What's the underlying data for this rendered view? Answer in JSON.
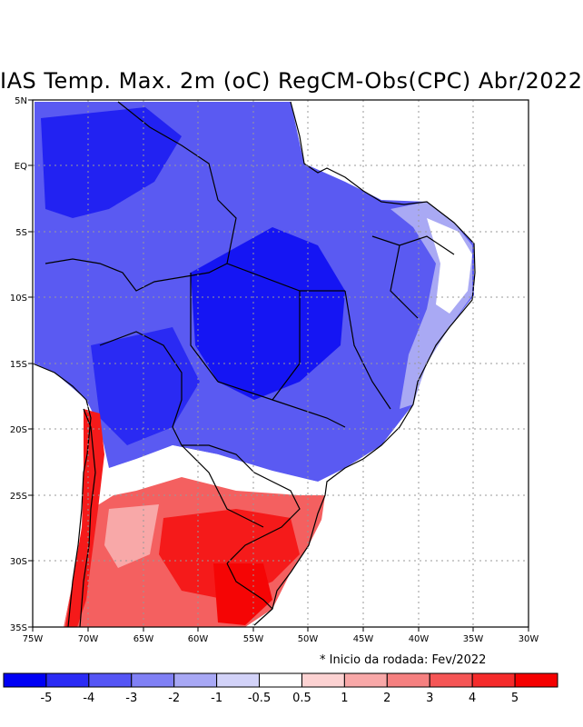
{
  "title": "IAS Temp. Max. 2m (oC) RegCM-Obs(CPC) Abr/2022",
  "note": "* Inicio da rodada: Fev/2022",
  "lat_ticks": [
    "5N",
    "EQ",
    "5S",
    "10S",
    "15S",
    "20S",
    "25S",
    "30S",
    "35S"
  ],
  "lon_ticks": [
    "75W",
    "70W",
    "65W",
    "60W",
    "55W",
    "50W",
    "45W",
    "40W",
    "35W",
    "30W"
  ],
  "colorbar": {
    "colors": [
      "#0000f5",
      "#2b2bf5",
      "#5555f5",
      "#8080f5",
      "#a8a8f5",
      "#d2d2f8",
      "#ffffff",
      "#fcd2d2",
      "#f8a8a8",
      "#f58080",
      "#f55555",
      "#f52b2b",
      "#f50000"
    ],
    "labels": [
      "-5",
      "-4",
      "-3",
      "-2",
      "-1",
      "-0.5",
      "0.5",
      "1",
      "2",
      "3",
      "4",
      "5"
    ]
  },
  "map": {
    "extent": {
      "lon_min": -75,
      "lon_max": -30,
      "lat_min": -35,
      "lat_max": 5
    }
  }
}
